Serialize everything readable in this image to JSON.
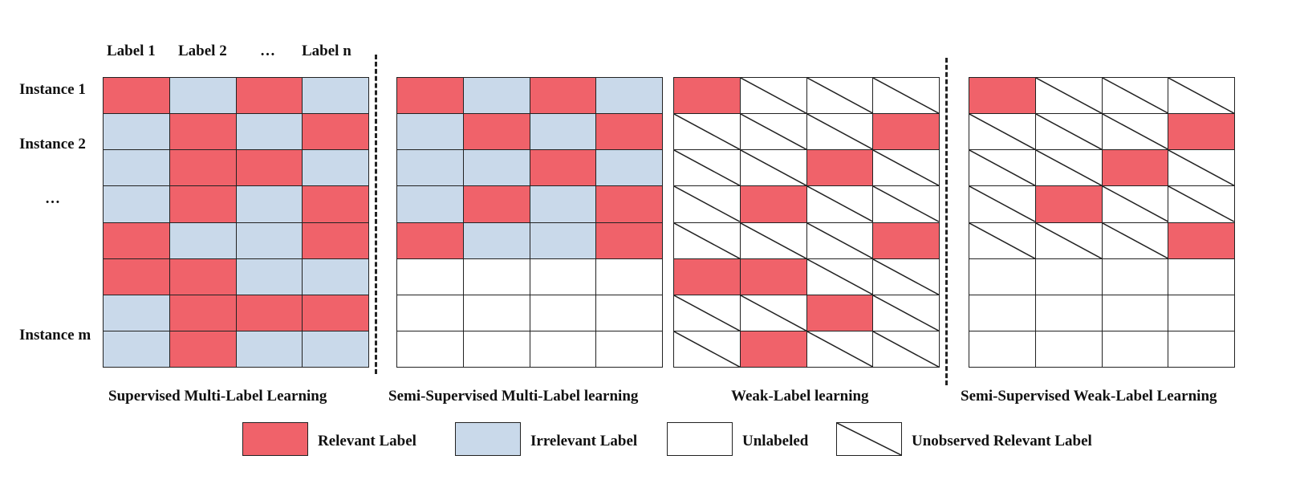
{
  "column_labels": [
    "Label 1",
    "Label 2",
    "…",
    "Label n"
  ],
  "row_labels": {
    "instance1": "Instance 1",
    "instance2": "Instance 2",
    "ellipsis": "…",
    "instanceM": "Instance m"
  },
  "panels": [
    {
      "title": "Supervised Multi-Label Learning",
      "cells": [
        [
          "R",
          "I",
          "R",
          "I"
        ],
        [
          "I",
          "R",
          "I",
          "R"
        ],
        [
          "I",
          "R",
          "R",
          "I"
        ],
        [
          "I",
          "R",
          "I",
          "R"
        ],
        [
          "R",
          "I",
          "I",
          "R"
        ],
        [
          "R",
          "R",
          "I",
          "I"
        ],
        [
          "I",
          "R",
          "R",
          "R"
        ],
        [
          "I",
          "R",
          "I",
          "I"
        ]
      ]
    },
    {
      "title": "Semi-Supervised Multi-Label learning",
      "cells": [
        [
          "R",
          "I",
          "R",
          "I"
        ],
        [
          "I",
          "R",
          "I",
          "R"
        ],
        [
          "I",
          "I",
          "R",
          "I"
        ],
        [
          "I",
          "R",
          "I",
          "R"
        ],
        [
          "R",
          "I",
          "I",
          "R"
        ],
        [
          "U",
          "U",
          "U",
          "U"
        ],
        [
          "U",
          "U",
          "U",
          "U"
        ],
        [
          "U",
          "U",
          "U",
          "U"
        ]
      ]
    },
    {
      "title": "Weak-Label learning",
      "cells": [
        [
          "R",
          "D",
          "D",
          "D"
        ],
        [
          "D",
          "D",
          "D",
          "R"
        ],
        [
          "D",
          "D",
          "R",
          "D"
        ],
        [
          "D",
          "R",
          "D",
          "D"
        ],
        [
          "D",
          "D",
          "D",
          "R"
        ],
        [
          "R",
          "R",
          "D",
          "D"
        ],
        [
          "D",
          "D",
          "R",
          "D"
        ],
        [
          "D",
          "R",
          "D",
          "D"
        ]
      ]
    },
    {
      "title": "Semi-Supervised Weak-Label Learning",
      "cells": [
        [
          "R",
          "D",
          "D",
          "D"
        ],
        [
          "D",
          "D",
          "D",
          "R"
        ],
        [
          "D",
          "D",
          "R",
          "D"
        ],
        [
          "D",
          "R",
          "D",
          "D"
        ],
        [
          "D",
          "D",
          "D",
          "R"
        ],
        [
          "U",
          "U",
          "U",
          "U"
        ],
        [
          "U",
          "U",
          "U",
          "U"
        ],
        [
          "U",
          "U",
          "U",
          "U"
        ]
      ]
    }
  ],
  "legend": {
    "relevant": "Relevant Label",
    "irrelevant": "Irrelevant Label",
    "unlabeled": "Unlabeled",
    "unobserved": "Unobserved Relevant Label"
  },
  "colors": {
    "relevant": "#f0626a",
    "irrelevant": "#c9d9ea",
    "unlabeled": "#ffffff"
  }
}
